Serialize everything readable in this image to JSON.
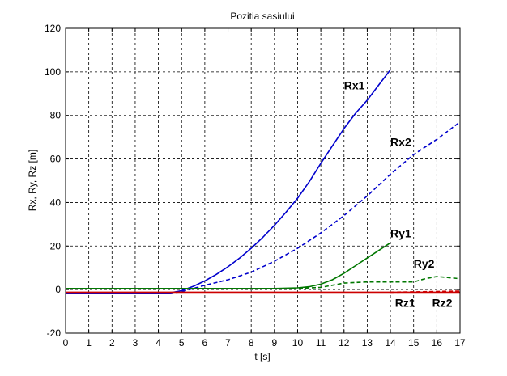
{
  "chart_data": {
    "type": "line",
    "title": "Pozitia sasiului",
    "xlabel": "t [s]",
    "ylabel": "Rx, Ry, Rz [m]",
    "xlim": [
      0,
      17
    ],
    "ylim": [
      -20,
      120
    ],
    "xticks": [
      0,
      1,
      2,
      3,
      4,
      5,
      6,
      7,
      8,
      9,
      10,
      11,
      12,
      13,
      14,
      15,
      16,
      17
    ],
    "yticks": [
      -20,
      0,
      20,
      40,
      60,
      80,
      100,
      120
    ],
    "grid": true,
    "series": [
      {
        "name": "Rx1",
        "color": "#0000cc",
        "dash": "solid",
        "x": [
          0,
          4.5,
          5,
          5.5,
          6,
          6.5,
          7,
          7.5,
          8,
          8.5,
          9,
          9.5,
          10,
          10.5,
          11,
          11.5,
          12,
          12.5,
          13,
          13.5,
          14
        ],
        "y": [
          -1.5,
          -1.5,
          -0.5,
          1.5,
          4,
          7,
          10.5,
          14.5,
          19,
          24,
          29.5,
          35.5,
          42,
          49.5,
          58,
          66,
          74,
          81,
          87,
          94,
          101
        ]
      },
      {
        "name": "Rx2",
        "color": "#0000cc",
        "dash": "dashed",
        "x": [
          0,
          4.5,
          5,
          6,
          7,
          8,
          9,
          10,
          11,
          12,
          13,
          14,
          15,
          16,
          17
        ],
        "y": [
          -1.5,
          -1.5,
          -1,
          2,
          4.5,
          8,
          13,
          19,
          26,
          34,
          43,
          53,
          62,
          69,
          77
        ]
      },
      {
        "name": "Ry1",
        "color": "#007700",
        "dash": "solid",
        "x": [
          0,
          9,
          10,
          10.5,
          11,
          11.5,
          12,
          12.5,
          13,
          13.5,
          14
        ],
        "y": [
          0.5,
          0.5,
          0.8,
          1.3,
          2.5,
          4.5,
          7.5,
          11,
          14.5,
          18,
          21.5
        ]
      },
      {
        "name": "Ry2",
        "color": "#007700",
        "dash": "dashed",
        "x": [
          0,
          10,
          11,
          12,
          13,
          14,
          15,
          15.5,
          16,
          16.5,
          17
        ],
        "y": [
          0.5,
          0.5,
          1,
          3,
          3.5,
          3.5,
          3.5,
          5,
          6,
          5.5,
          5
        ]
      },
      {
        "name": "Rz1",
        "color": "#cc0000",
        "dash": "solid",
        "x": [
          0,
          17
        ],
        "y": [
          -1.2,
          -1.2
        ]
      },
      {
        "name": "Rz2",
        "color": "#cc0000",
        "dash": "dashed",
        "x": [
          14,
          17
        ],
        "y": [
          -1.2,
          -0.7
        ]
      }
    ],
    "annotations": [
      {
        "text": "Rx1",
        "x": 12.0,
        "y": 92
      },
      {
        "text": "Rx2",
        "x": 14.0,
        "y": 66
      },
      {
        "text": "Ry1",
        "x": 14.0,
        "y": 24
      },
      {
        "text": "Ry2",
        "x": 15.0,
        "y": 10
      },
      {
        "text": "Rz1",
        "x": 14.2,
        "y": -8
      },
      {
        "text": "Rz2",
        "x": 15.8,
        "y": -8
      }
    ]
  }
}
